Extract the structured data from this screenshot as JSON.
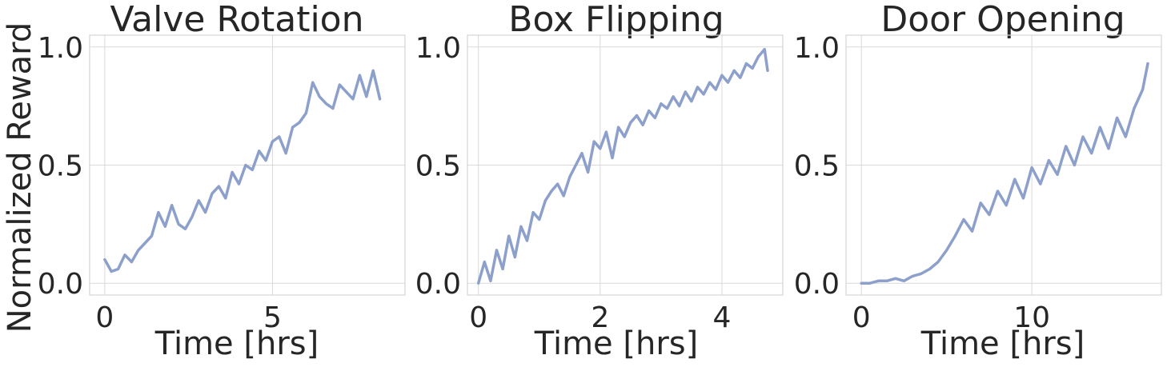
{
  "colors": {
    "line": "#8da0cb"
  },
  "chart_data": [
    {
      "type": "line",
      "title": "Valve Rotation",
      "xlabel": "Time [hrs]",
      "ylabel": "Normalized Reward",
      "xlim": [
        -0.45,
        8.95
      ],
      "ylim": [
        -0.05,
        1.05
      ],
      "xticks": [
        0,
        5
      ],
      "xtick_labels": [
        "0",
        "5"
      ],
      "yticks": [
        0.0,
        0.5,
        1.0
      ],
      "ytick_labels": [
        "0.0",
        "0.5",
        "1.0"
      ],
      "grid": true,
      "series": [
        {
          "x": [
            0.0,
            0.2,
            0.4,
            0.6,
            0.8,
            1.0,
            1.2,
            1.4,
            1.6,
            1.8,
            2.0,
            2.2,
            2.4,
            2.6,
            2.8,
            3.0,
            3.2,
            3.4,
            3.6,
            3.8,
            4.0,
            4.2,
            4.4,
            4.6,
            4.8,
            5.0,
            5.2,
            5.4,
            5.6,
            5.8,
            6.0,
            6.2,
            6.4,
            6.6,
            6.8,
            7.0,
            7.2,
            7.4,
            7.6,
            7.8,
            8.0,
            8.2
          ],
          "y": [
            0.1,
            0.05,
            0.06,
            0.12,
            0.09,
            0.14,
            0.17,
            0.2,
            0.3,
            0.24,
            0.33,
            0.25,
            0.23,
            0.28,
            0.35,
            0.3,
            0.38,
            0.41,
            0.36,
            0.47,
            0.42,
            0.5,
            0.48,
            0.56,
            0.52,
            0.6,
            0.62,
            0.55,
            0.66,
            0.68,
            0.72,
            0.85,
            0.79,
            0.76,
            0.74,
            0.84,
            0.81,
            0.78,
            0.88,
            0.79,
            0.9,
            0.78
          ]
        }
      ]
    },
    {
      "type": "line",
      "title": "Box Flipping",
      "xlabel": "Time [hrs]",
      "ylabel": "",
      "xlim": [
        -0.18,
        5.0
      ],
      "ylim": [
        -0.05,
        1.05
      ],
      "xticks": [
        0,
        2,
        4
      ],
      "xtick_labels": [
        "0",
        "2",
        "4"
      ],
      "yticks": [
        0.0,
        0.5,
        1.0
      ],
      "ytick_labels": [
        "0.0",
        "0.5",
        "1.0"
      ],
      "grid": true,
      "series": [
        {
          "x": [
            0.0,
            0.1,
            0.2,
            0.3,
            0.4,
            0.5,
            0.6,
            0.7,
            0.8,
            0.9,
            1.0,
            1.1,
            1.2,
            1.3,
            1.4,
            1.5,
            1.6,
            1.7,
            1.8,
            1.9,
            2.0,
            2.1,
            2.2,
            2.3,
            2.4,
            2.5,
            2.6,
            2.7,
            2.8,
            2.9,
            3.0,
            3.1,
            3.2,
            3.3,
            3.4,
            3.5,
            3.6,
            3.7,
            3.8,
            3.9,
            4.0,
            4.1,
            4.2,
            4.3,
            4.4,
            4.5,
            4.6,
            4.7,
            4.75
          ],
          "y": [
            0.0,
            0.09,
            0.01,
            0.14,
            0.06,
            0.2,
            0.11,
            0.24,
            0.18,
            0.3,
            0.27,
            0.35,
            0.39,
            0.42,
            0.37,
            0.45,
            0.5,
            0.55,
            0.47,
            0.6,
            0.57,
            0.64,
            0.53,
            0.66,
            0.62,
            0.68,
            0.71,
            0.67,
            0.73,
            0.7,
            0.76,
            0.74,
            0.79,
            0.75,
            0.81,
            0.77,
            0.83,
            0.8,
            0.85,
            0.82,
            0.88,
            0.85,
            0.9,
            0.87,
            0.93,
            0.91,
            0.96,
            0.99,
            0.9
          ]
        }
      ]
    },
    {
      "type": "line",
      "title": "Door Opening",
      "xlabel": "Time [hrs]",
      "ylabel": "",
      "xlim": [
        -0.9,
        17.6
      ],
      "ylim": [
        -0.05,
        1.05
      ],
      "xticks": [
        0,
        10
      ],
      "xtick_labels": [
        "0",
        "10"
      ],
      "yticks": [
        0.0,
        0.5,
        1.0
      ],
      "ytick_labels": [
        "0.0",
        "0.5",
        "1.0"
      ],
      "grid": true,
      "series": [
        {
          "x": [
            0.0,
            0.5,
            1.0,
            1.5,
            2.0,
            2.5,
            3.0,
            3.5,
            4.0,
            4.5,
            5.0,
            5.5,
            6.0,
            6.5,
            7.0,
            7.5,
            8.0,
            8.5,
            9.0,
            9.5,
            10.0,
            10.5,
            11.0,
            11.5,
            12.0,
            12.5,
            13.0,
            13.5,
            14.0,
            14.5,
            15.0,
            15.5,
            16.0,
            16.5,
            16.8
          ],
          "y": [
            0.0,
            0.0,
            0.01,
            0.01,
            0.02,
            0.01,
            0.03,
            0.04,
            0.06,
            0.09,
            0.14,
            0.2,
            0.27,
            0.22,
            0.34,
            0.29,
            0.39,
            0.33,
            0.44,
            0.36,
            0.49,
            0.42,
            0.52,
            0.46,
            0.58,
            0.5,
            0.62,
            0.55,
            0.66,
            0.57,
            0.7,
            0.62,
            0.74,
            0.82,
            0.93
          ]
        }
      ]
    }
  ]
}
